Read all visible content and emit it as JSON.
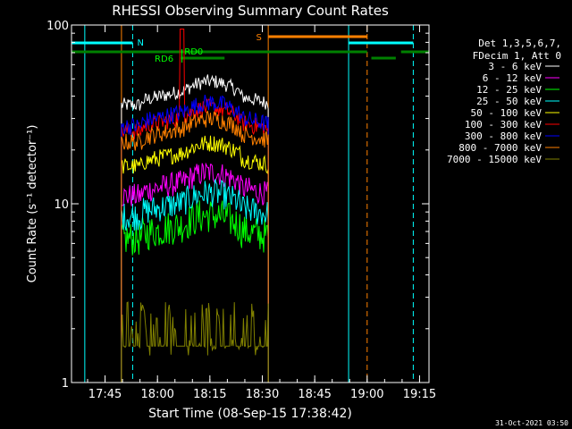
{
  "chart_data": {
    "type": "line",
    "title": "RHESSI Observing Summary Count Rates",
    "xlabel": "Start Time (08-Sep-15 17:38:42)",
    "ylabel": "Count Rate (s⁻¹ detector⁻¹)",
    "ylog": true,
    "ylim": [
      1,
      100
    ],
    "xlim_minutes": [
      -3.3,
      99
    ],
    "x_ticks": [
      {
        "min": 6.3,
        "label": "17:45"
      },
      {
        "min": 21.3,
        "label": "18:00"
      },
      {
        "min": 36.3,
        "label": "18:15"
      },
      {
        "min": 51.3,
        "label": "18:30"
      },
      {
        "min": 66.3,
        "label": "18:45"
      },
      {
        "min": 81.3,
        "label": "19:00"
      },
      {
        "min": 96.3,
        "label": "19:15"
      }
    ],
    "y_ticks": [
      {
        "value": 1,
        "label": "1"
      },
      {
        "value": 10,
        "label": "10"
      },
      {
        "value": 100,
        "label": "100"
      }
    ],
    "legend_header": [
      "Det 1,3,5,6,7,",
      "FDecim 1, Att 0"
    ],
    "legend_position": "right",
    "series": [
      {
        "name": "3 - 6 keV",
        "color": "#ffffff",
        "level": 42,
        "noise": 0.04
      },
      {
        "name": "6 - 12 keV",
        "color": "#ff00ff",
        "level": 13,
        "noise": 0.07
      },
      {
        "name": "12 - 25 keV",
        "color": "#00ff00",
        "level": 7.5,
        "noise": 0.1
      },
      {
        "name": "25 - 50 keV",
        "color": "#00ffff",
        "level": 10,
        "noise": 0.08
      },
      {
        "name": "50 - 100 keV",
        "color": "#ffff00",
        "level": 19,
        "noise": 0.05
      },
      {
        "name": "100 - 300 keV",
        "color": "#ff0000",
        "level": 30,
        "noise": 0.05
      },
      {
        "name": "300 - 800 keV",
        "color": "#0000ff",
        "level": 32,
        "noise": 0.05
      },
      {
        "name": "800 - 7000 keV",
        "color": "#ff8000",
        "level": 26,
        "noise": 0.05
      },
      {
        "name": "7000 - 15000 keV",
        "color": "#808000",
        "level": 1.9,
        "noise": 0.25
      }
    ],
    "data_window_minutes": [
      11,
      53
    ],
    "spike": {
      "min": 28.3,
      "value": 95
    },
    "annotations": [
      {
        "label": "N",
        "color": "#00ffff"
      },
      {
        "label": "S",
        "color": "#ff8000"
      },
      {
        "label": "RD6",
        "color": "#00ff00"
      },
      {
        "label": "RD0",
        "color": "#00ff00"
      }
    ],
    "timestamp": "31-Oct-2021 03:50"
  }
}
